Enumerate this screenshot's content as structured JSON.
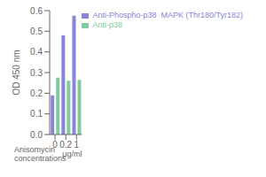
{
  "chart_data": {
    "type": "bar",
    "categories": [
      "0",
      "0.2",
      "1"
    ],
    "series": [
      {
        "name": "Anti-Phospho-p38  MAPK (Thr180/Tyr182)",
        "color": "#8884d8",
        "values": [
          0.19,
          0.48,
          0.575
        ]
      },
      {
        "name": "Anti-p38",
        "color": "#82ca9d",
        "values": [
          0.275,
          0.26,
          0.265
        ]
      }
    ],
    "ylabel": "OD 450 nm",
    "xlabel": "Anisomycin\nconcentrations",
    "annotations": [
      "μg/ml"
    ],
    "ylim": [
      0.0,
      0.6
    ],
    "yticks": [
      {
        "value": 0.0,
        "label": "0.0"
      },
      0.1,
      0.2,
      0.3,
      0.4,
      0.5,
      0.6
    ],
    "legend": "upper right",
    "grid": false
  }
}
